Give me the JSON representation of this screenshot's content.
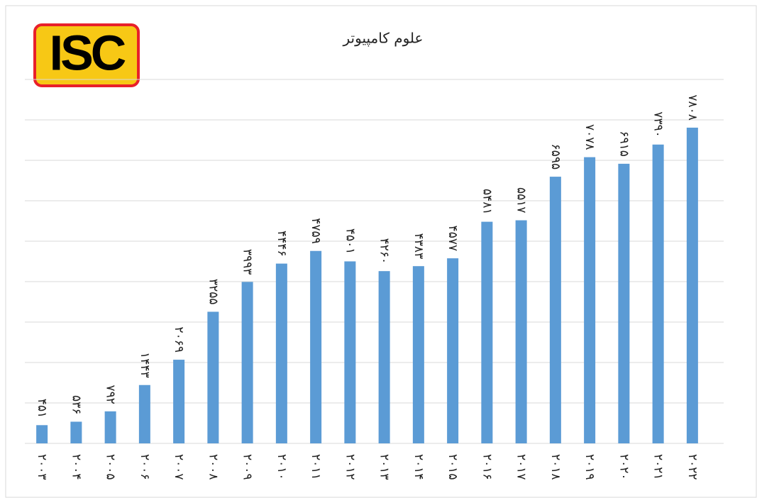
{
  "chart_data": {
    "type": "bar",
    "title": "علوم کامپیوتر",
    "logo": "ISC",
    "categories": [
      "۲۰۰۳",
      "۲۰۰۴",
      "۲۰۰۵",
      "۲۰۰۶",
      "۲۰۰۷",
      "۲۰۰۸",
      "۲۰۰۹",
      "۲۰۱۰",
      "۲۰۱۱",
      "۲۰۱۲",
      "۲۰۱۳",
      "۲۰۱۴",
      "۲۰۱۵",
      "۲۰۱۶",
      "۲۰۱۷",
      "۲۰۱۸",
      "۲۰۱۹",
      "۲۰۲۰",
      "۲۰۲۱",
      "۲۰۲۲"
    ],
    "values": [
      451,
      536,
      792,
      1443,
      2069,
      3255,
      3993,
      4446,
      4759,
      4501,
      4260,
      4383,
      4577,
      5481,
      5517,
      6595,
      7078,
      6915,
      7390,
      7808
    ],
    "value_labels": [
      "۴۵۱",
      "۵۳۶",
      "۷۹۲",
      "۱۴۴۳",
      "۲۰۶۹",
      "۳۲۵۵",
      "۳۹۹۳",
      "۴۴۴۶",
      "۴۷۵۹",
      "۴۵۰۱",
      "۴۲۶۰",
      "۴۳۸۳",
      "۴۵۷۷",
      "۵۴۸۱",
      "۵۵۱۷",
      "۶۵۹۵",
      "۷۰۷۸",
      "۶۹۱۵",
      "۷۳۹۰",
      "۷۸۰۸"
    ],
    "color": "#5b9bd5",
    "ylim": [
      0,
      9000
    ],
    "yticks": [
      0,
      1000,
      2000,
      3000,
      4000,
      5000,
      6000,
      7000,
      8000,
      9000
    ],
    "grid": true
  }
}
